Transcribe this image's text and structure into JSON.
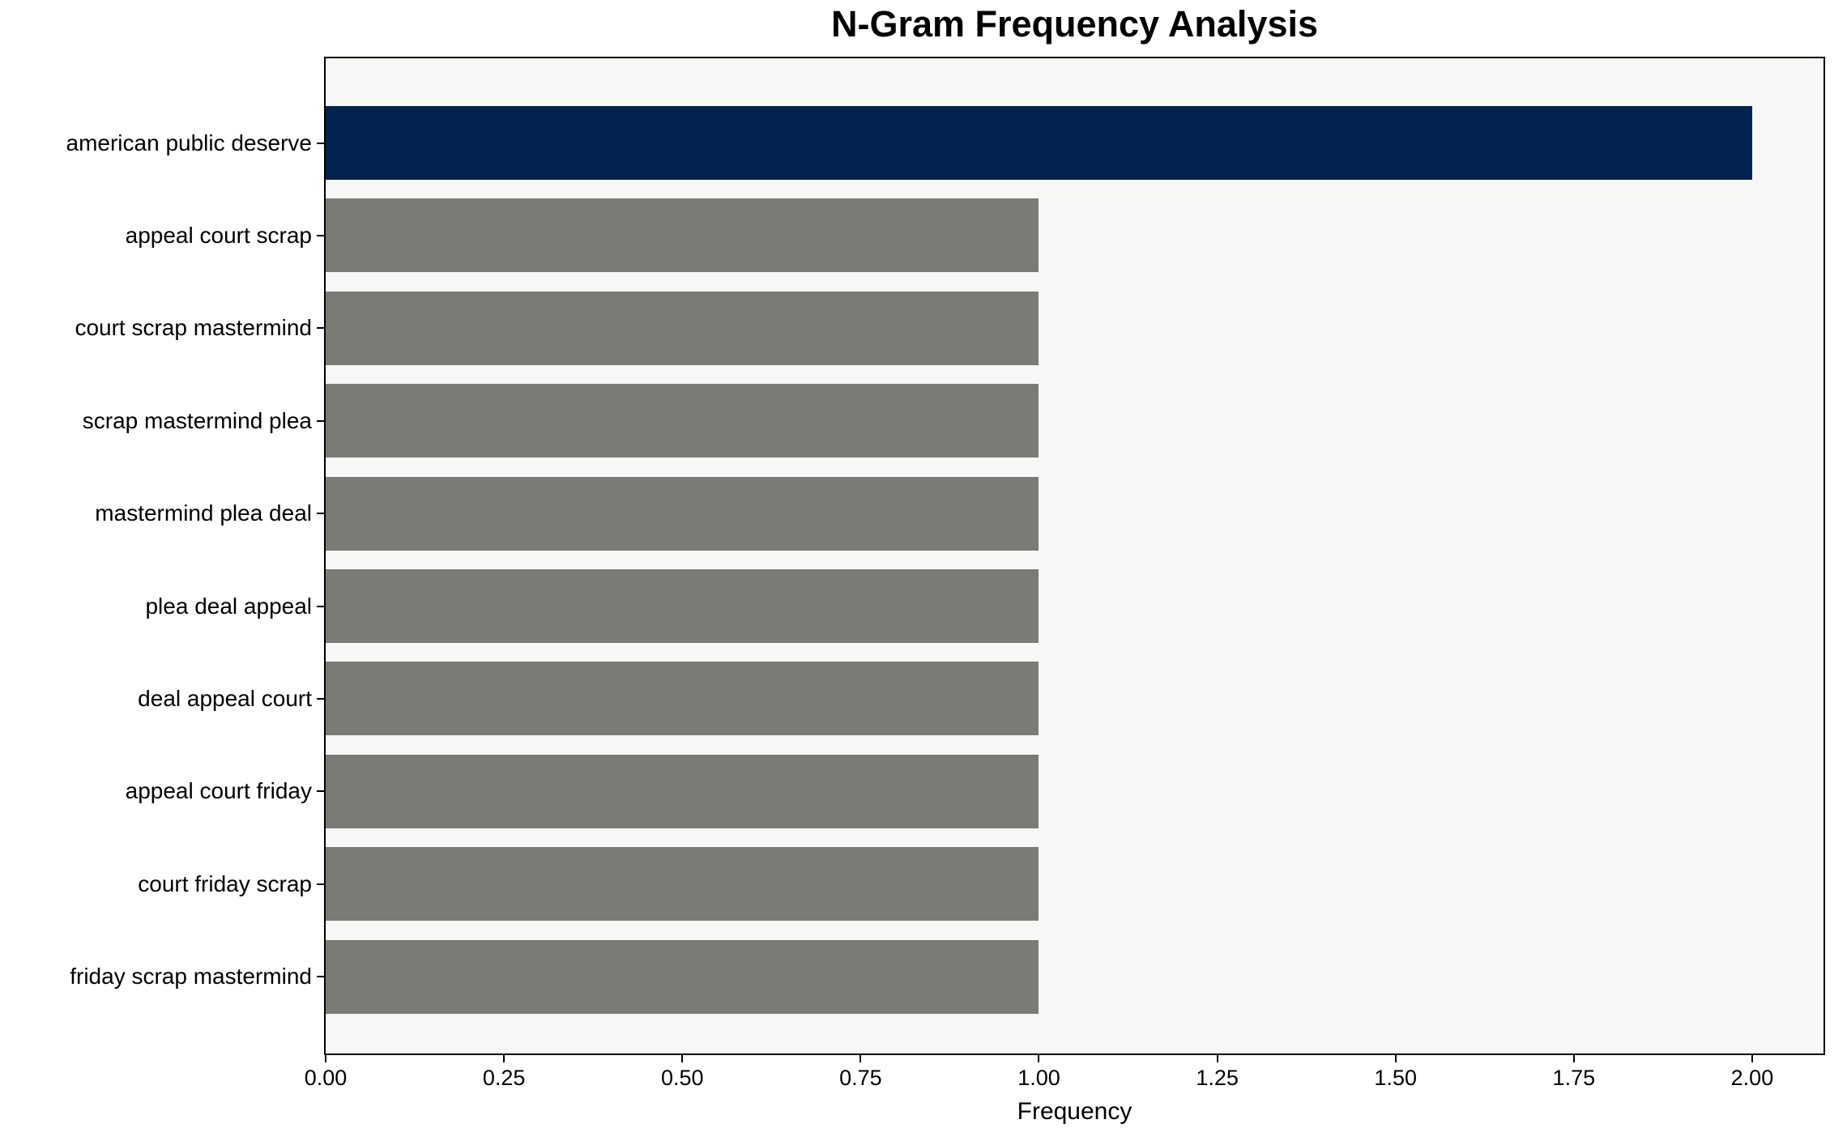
{
  "chart_data": {
    "type": "bar",
    "orientation": "horizontal",
    "title": "N-Gram Frequency Analysis",
    "xlabel": "Frequency",
    "ylabel": "",
    "categories": [
      "american public deserve",
      "appeal court scrap",
      "court scrap mastermind",
      "scrap mastermind plea",
      "mastermind plea deal",
      "plea deal appeal",
      "deal appeal court",
      "appeal court friday",
      "court friday scrap",
      "friday scrap mastermind"
    ],
    "values": [
      2,
      1,
      1,
      1,
      1,
      1,
      1,
      1,
      1,
      1
    ],
    "bar_colors": [
      "#02234D",
      "#7B7B76",
      "#7B7B76",
      "#7B7B76",
      "#7B7B76",
      "#7B7B76",
      "#7B7B76",
      "#7B7B76",
      "#7B7B76",
      "#7B7B76"
    ],
    "xlim": [
      0,
      2.1
    ],
    "x_ticks": [
      0.0,
      0.25,
      0.5,
      0.75,
      1.0,
      1.25,
      1.5,
      1.75,
      2.0
    ],
    "x_tick_labels": [
      "0.00",
      "0.25",
      "0.50",
      "0.75",
      "1.00",
      "1.25",
      "1.50",
      "1.75",
      "2.00"
    ],
    "grid": false,
    "legend_position": "none",
    "colors": {
      "highlight_bar": "#02234D",
      "default_bar": "#7B7B76",
      "plot_background": "#F7F7F6",
      "figure_background": "#FFFFFF",
      "spine": "#000000",
      "text": "#000000"
    }
  }
}
